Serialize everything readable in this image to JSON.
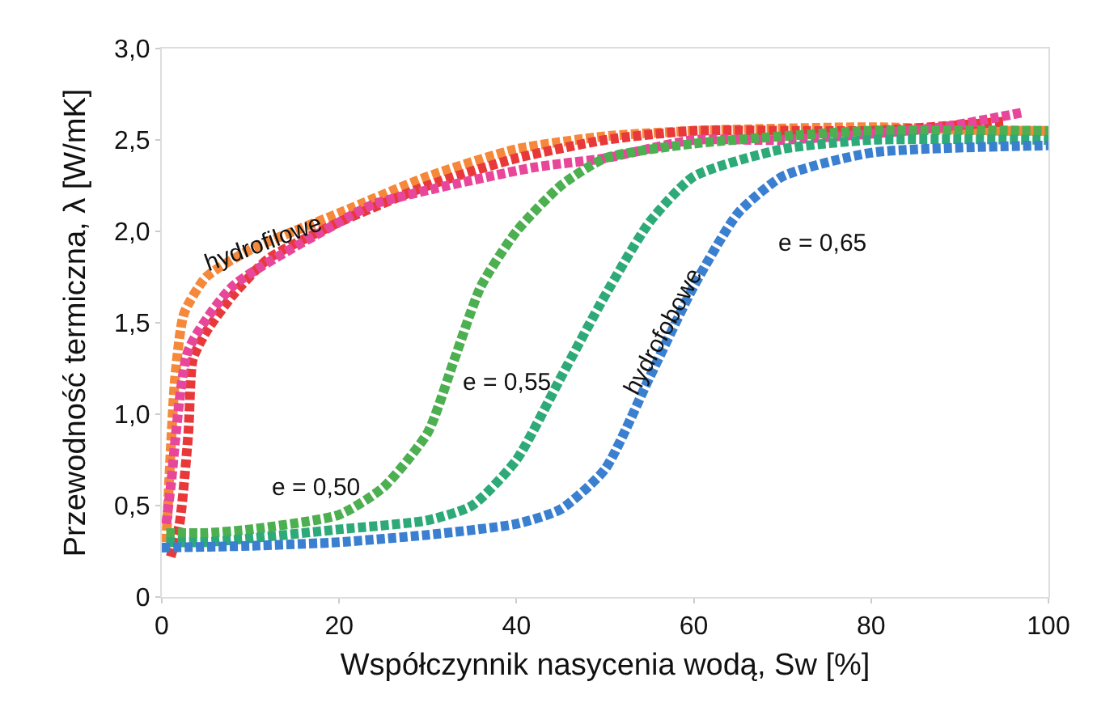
{
  "chart_data": {
    "type": "line",
    "xlabel": "Współczynnik nasycenia wodą, Sw [%]",
    "ylabel": "Przewodność termiczna, λ [W/mK]",
    "xlim": [
      0,
      100
    ],
    "xticks": [
      0,
      20,
      40,
      60,
      80,
      100
    ],
    "ylim": [
      0,
      3
    ],
    "yticks": [
      0,
      {
        "value": 0.5,
        "label": "0,5"
      },
      {
        "value": 1,
        "label": "1,0"
      },
      {
        "value": 1.5,
        "label": "1,5"
      },
      {
        "value": 2,
        "label": "2,0"
      },
      {
        "value": 2.5,
        "label": "2,5"
      },
      {
        "value": 3,
        "label": "3,0"
      }
    ],
    "grid": false,
    "line_style": "dotted",
    "series": [
      {
        "color": "#f5883a",
        "x": [
          0.5,
          1,
          1.5,
          2.5,
          5,
          10,
          20,
          30,
          40,
          50,
          60,
          80,
          95,
          100
        ],
        "values": [
          0.3,
          0.8,
          1.2,
          1.55,
          1.75,
          1.9,
          2.1,
          2.3,
          2.45,
          2.52,
          2.55,
          2.57,
          2.55,
          2.55
        ]
      },
      {
        "color": "#e8383a",
        "x": [
          1,
          2,
          3,
          3.5,
          5,
          8,
          12,
          20,
          30,
          40,
          50,
          60,
          80,
          95
        ],
        "values": [
          0.22,
          0.4,
          0.9,
          1.3,
          1.45,
          1.65,
          1.85,
          2.05,
          2.25,
          2.4,
          2.5,
          2.55,
          2.55,
          2.6
        ]
      },
      {
        "color": "#e8469a",
        "x": [
          0.5,
          1,
          3,
          8,
          20,
          24,
          42,
          50,
          60,
          70,
          88,
          97
        ],
        "values": [
          0.4,
          0.6,
          1.35,
          1.7,
          2.05,
          2.15,
          2.35,
          2.4,
          2.5,
          2.5,
          2.57,
          2.65
        ]
      },
      {
        "color": "#4caf50",
        "x": [
          0.5,
          5,
          10,
          20,
          25,
          30,
          33,
          36,
          40,
          45,
          50,
          60,
          80,
          100
        ],
        "values": [
          0.35,
          0.35,
          0.37,
          0.45,
          0.6,
          0.9,
          1.3,
          1.7,
          2.0,
          2.25,
          2.4,
          2.48,
          2.55,
          2.55
        ]
      },
      {
        "color": "#2eaa78",
        "x": [
          0.5,
          5,
          20,
          30,
          35,
          40,
          45,
          50,
          55,
          60,
          70,
          80,
          100
        ],
        "values": [
          0.3,
          0.3,
          0.37,
          0.42,
          0.5,
          0.75,
          1.2,
          1.65,
          2.05,
          2.3,
          2.45,
          2.5,
          2.5
        ]
      },
      {
        "color": "#3a7fd0",
        "x": [
          0,
          10,
          20,
          30,
          40,
          45,
          50,
          55,
          60,
          65,
          70,
          80,
          100
        ],
        "values": [
          0.27,
          0.28,
          0.3,
          0.34,
          0.4,
          0.48,
          0.7,
          1.2,
          1.7,
          2.1,
          2.3,
          2.43,
          2.47
        ]
      }
    ],
    "annotations": [
      {
        "text": "hydrofilowe",
        "x": 11.5,
        "y": 1.93
      },
      "e = 0,50",
      "e = 0,55",
      {
        "text": "hydrofobowe",
        "x": 56.5,
        "y": 1.45
      },
      "e = 0,65"
    ]
  }
}
